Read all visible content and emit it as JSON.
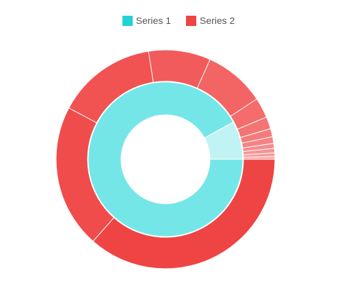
{
  "chart_data": {
    "type": "pie",
    "subtype": "nested-doughnut",
    "legend": {
      "position": "top"
    },
    "series": [
      {
        "name": "Series 1",
        "color": "#22d3d6",
        "ring": "inner",
        "values": [
          92,
          8
        ],
        "slice_colors": [
          "#74e6e8",
          "#c2f3f4"
        ]
      },
      {
        "name": "Series 2",
        "color": "#ef4444",
        "ring": "outer",
        "values": [
          27.5,
          16,
          11.1,
          6.9,
          6.8,
          2.25,
          1.35,
          0.9,
          0.75,
          0.55,
          0.5,
          0.4,
          0.3
        ],
        "slice_colors": [
          "#ef4444",
          "#f04c4c",
          "#f15252",
          "#f25b5b",
          "#f36464",
          "#f46c6c",
          "#f47474",
          "#f57b7b",
          "#f68383",
          "#f78b8b",
          "#f89393",
          "#f99b9b",
          "#faa3a3"
        ]
      }
    ]
  }
}
